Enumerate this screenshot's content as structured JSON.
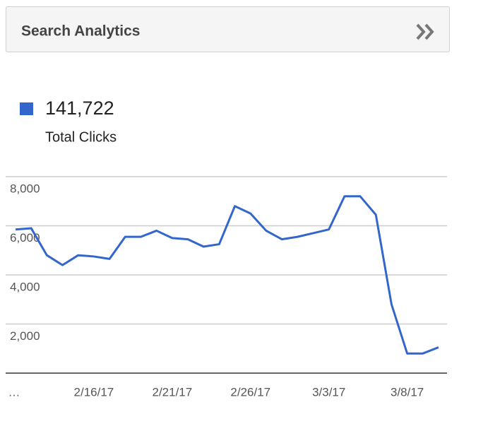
{
  "header": {
    "title": "Search Analytics"
  },
  "chart_data": {
    "type": "line",
    "legend_total": "141,722",
    "categories": [
      "…",
      null,
      null,
      null,
      null,
      "2/16/17",
      null,
      null,
      null,
      null,
      "2/21/17",
      null,
      null,
      null,
      null,
      "2/26/17",
      null,
      null,
      null,
      null,
      "3/3/17",
      null,
      null,
      null,
      null,
      "3/8/17",
      null,
      null
    ],
    "series": [
      {
        "name": "Total Clicks",
        "color": "#3366cc",
        "values": [
          5850,
          5900,
          4800,
          4400,
          4800,
          4750,
          4650,
          5550,
          5550,
          5800,
          5500,
          5450,
          5150,
          5250,
          6800,
          6500,
          5800,
          5450,
          5550,
          5700,
          5850,
          7200,
          7200,
          6450,
          2800,
          800,
          800,
          1050
        ]
      }
    ],
    "ylim": [
      0,
      8000
    ],
    "yticks": [
      {
        "value": 2000,
        "label": "2,000"
      },
      {
        "value": 4000,
        "label": "4,000"
      },
      {
        "value": 6000,
        "label": "6,000"
      },
      {
        "value": 8000,
        "label": "8,000"
      }
    ],
    "grid": true
  }
}
